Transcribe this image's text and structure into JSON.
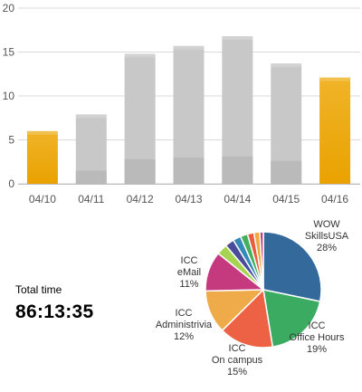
{
  "chart_data": [
    {
      "type": "bar",
      "categories": [
        "04/10",
        "04/11",
        "04/12",
        "04/13",
        "04/14",
        "04/15",
        "04/16"
      ],
      "series": [
        {
          "values": [
            6.0,
            7.9,
            14.8,
            15.7,
            16.8,
            13.7,
            12.1
          ]
        }
      ],
      "secondary_values": [
        0,
        1.5,
        2.8,
        3.0,
        3.1,
        2.6,
        0
      ],
      "highlighted": [
        "04/10",
        "04/16"
      ],
      "ylim": [
        0,
        20
      ],
      "yticks": [
        0,
        5,
        10,
        15,
        20
      ],
      "grid": true,
      "colors": {
        "highlight": "#f0b428",
        "highlight_dark": "#e9a200",
        "normal": "#c8c8c8",
        "normal_dark": "#bababa",
        "grid": "#d9d9d9"
      }
    },
    {
      "type": "pie",
      "slices": [
        {
          "label_lines": [
            "WOW",
            "SkillsUSA",
            "28%"
          ],
          "value": 28,
          "color": "#336a9b"
        },
        {
          "label_lines": [
            "ICC",
            "Office Hours",
            "19%"
          ],
          "value": 19,
          "color": "#3aab60"
        },
        {
          "label_lines": [
            "ICC",
            "On campus",
            "15%"
          ],
          "value": 15,
          "color": "#ed6245"
        },
        {
          "label_lines": [
            "ICC",
            "Administrivia",
            "12%"
          ],
          "value": 12,
          "color": "#efab4a"
        },
        {
          "label_lines": [
            "ICC",
            "eMail",
            "11%"
          ],
          "value": 11,
          "color": "#c53a7f"
        },
        {
          "label_lines": [],
          "value": 3,
          "color": "#a6d352"
        },
        {
          "label_lines": [],
          "value": 2.5,
          "color": "#4a4c99"
        },
        {
          "label_lines": [],
          "value": 2.2,
          "color": "#3589b8"
        },
        {
          "label_lines": [],
          "value": 2,
          "color": "#42b05f"
        },
        {
          "label_lines": [],
          "value": 1.8,
          "color": "#eb5c3e"
        },
        {
          "label_lines": [],
          "value": 1.6,
          "color": "#efaa3e"
        },
        {
          "label_lines": [],
          "value": 1,
          "color": "#c03c80"
        }
      ]
    }
  ],
  "summary": {
    "total_label": "Total time",
    "total_value": "86:13:35"
  }
}
